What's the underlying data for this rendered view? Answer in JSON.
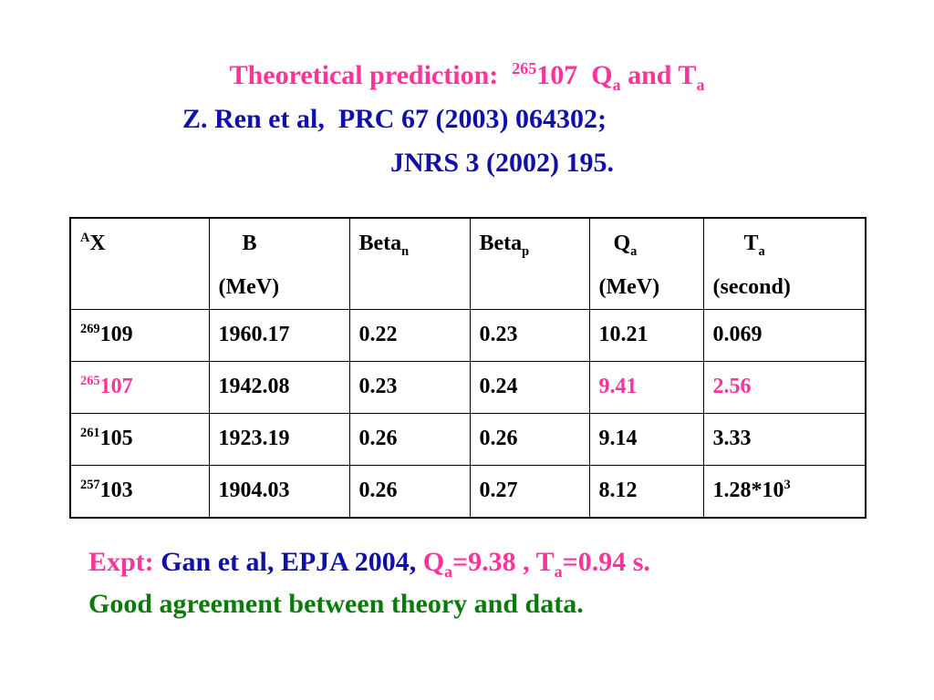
{
  "header": {
    "line1": {
      "text": "Theoretical prediction:",
      "mass": "265",
      "element": "107",
      "q": "Q",
      "q_sub": "a",
      "and_t": "and T",
      "t_sub": "a"
    },
    "line2": "Z. Ren et al,  PRC 67 (2003) 064302;",
    "line3": "JNRS 3 (2002) 195."
  },
  "table": {
    "columns": [
      {
        "sup": "A",
        "text": "X"
      },
      {
        "text": "B",
        "unit": "(MeV)"
      },
      {
        "text": "Beta",
        "sub": "n"
      },
      {
        "text": "Beta",
        "sub": "p"
      },
      {
        "text": "Q",
        "sub": "a",
        "unit": "(MeV)"
      },
      {
        "text": "T",
        "sub": "a",
        "unit": "(second)"
      }
    ],
    "rows": [
      [
        {
          "sup": "269",
          "text": "109"
        },
        "1960.17",
        "0.22",
        "0.23",
        "10.21",
        "0.069"
      ],
      [
        {
          "sup": "265",
          "text": "107"
        },
        "1942.08",
        "0.23",
        "0.24",
        "9.41",
        "2.56"
      ],
      [
        {
          "sup": "261",
          "text": "105"
        },
        "1923.19",
        "0.26",
        "0.26",
        "9.14",
        "3.33"
      ],
      [
        {
          "sup": "257",
          "text": "103"
        },
        "1904.03",
        "0.26",
        "0.27",
        "8.12",
        {
          "text": "1.28*10",
          "sup": "3"
        }
      ]
    ]
  },
  "footer": {
    "line1": {
      "label": "Expt:",
      "ref": "Gan et al, EPJA 2004,",
      "q": "Q",
      "q_sub": "a",
      "q_value": "=9.38 , T",
      "t_sub": "a",
      "t_value": "=0.94 s."
    },
    "line2": "Good agreement between theory and data."
  }
}
